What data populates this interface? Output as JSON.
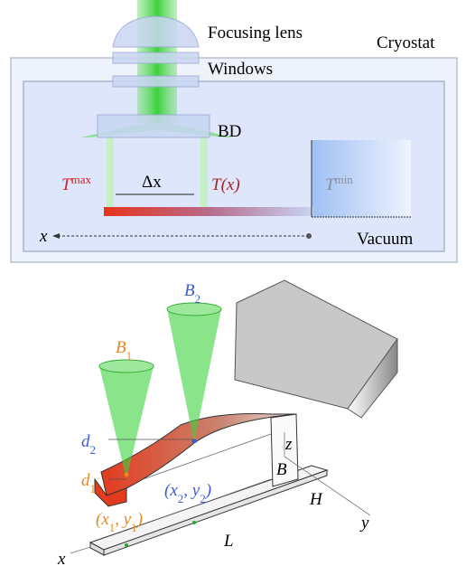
{
  "top": {
    "focusing_lens": "Focusing lens",
    "cryostat": "Cryostat",
    "windows": "Windows",
    "bd": "BD",
    "t_max": {
      "base": "T",
      "sup": "max"
    },
    "delta_x": "Δx",
    "t_x": "T(x)",
    "t_min": {
      "base": "T",
      "sup": "min"
    },
    "x_axis": "x",
    "vacuum": "Vacuum"
  },
  "bottom": {
    "beam_2": {
      "base": "B",
      "sub": "2"
    },
    "beam_1": {
      "base": "B",
      "sub": "1"
    },
    "d_2": {
      "base": "d",
      "sub": "2"
    },
    "d_1": {
      "base": "d",
      "sub": "1"
    },
    "z": "z",
    "b": "B",
    "h": "H",
    "y": "y",
    "x": "x",
    "l": "L",
    "point_2": [
      {
        "text": "(x"
      },
      {
        "sub": "2"
      },
      {
        "text": ", y"
      },
      {
        "sub": "2"
      },
      {
        "text": ")"
      }
    ],
    "point_1": [
      {
        "text": "(x"
      },
      {
        "sub": "1"
      },
      {
        "text": ", y"
      },
      {
        "sub": "1"
      },
      {
        "text": ")"
      }
    ]
  }
}
